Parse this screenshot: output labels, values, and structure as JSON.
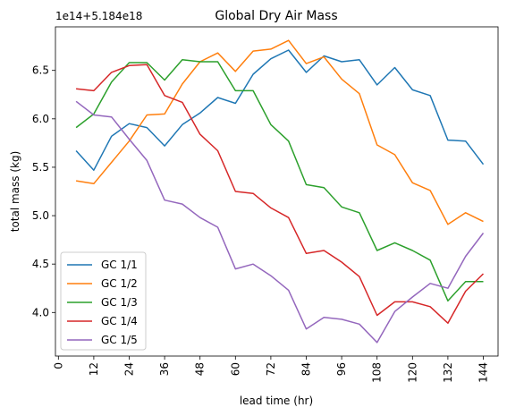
{
  "chart_data": {
    "type": "line",
    "title": "Global Dry Air Mass",
    "xlabel": "lead time (hr)",
    "ylabel": "total mass (kg)",
    "y_offset_text": "1e14+5.184e18",
    "xlim": [
      -1,
      149
    ],
    "ylim": [
      3.55,
      6.95
    ],
    "xticks": [
      0,
      12,
      24,
      36,
      48,
      60,
      72,
      84,
      96,
      108,
      120,
      132,
      144
    ],
    "yticks": [
      4.0,
      4.5,
      5.0,
      5.5,
      6.0,
      6.5
    ],
    "ytick_labels": [
      "4.0",
      "4.5",
      "5.0",
      "5.5",
      "6.0",
      "6.5"
    ],
    "grid": false,
    "legend_position": "lower-left",
    "x": [
      6,
      12,
      18,
      24,
      30,
      36,
      42,
      48,
      54,
      60,
      66,
      72,
      78,
      84,
      90,
      96,
      102,
      108,
      114,
      120,
      126,
      132,
      138,
      144
    ],
    "series": [
      {
        "name": "GC 1/1",
        "color": "#1f77b4",
        "values": [
          5.67,
          5.47,
          5.82,
          5.95,
          5.91,
          5.72,
          5.94,
          6.06,
          6.22,
          6.16,
          6.46,
          6.62,
          6.71,
          6.48,
          6.65,
          6.59,
          6.61,
          6.35,
          6.53,
          6.3,
          6.24,
          5.78,
          5.77,
          5.53
        ]
      },
      {
        "name": "GC 1/2",
        "color": "#ff7f0e",
        "values": [
          5.36,
          5.33,
          5.55,
          5.77,
          6.04,
          6.05,
          6.36,
          6.59,
          6.68,
          6.49,
          6.7,
          6.72,
          6.81,
          6.57,
          6.64,
          6.41,
          6.26,
          5.73,
          5.63,
          5.34,
          5.26,
          4.91,
          5.03,
          4.94
        ]
      },
      {
        "name": "GC 1/3",
        "color": "#2ca02c",
        "values": [
          5.91,
          6.05,
          6.38,
          6.58,
          6.58,
          6.4,
          6.61,
          6.59,
          6.59,
          6.29,
          6.29,
          5.94,
          5.77,
          5.32,
          5.29,
          5.09,
          5.03,
          4.64,
          4.72,
          4.64,
          4.54,
          4.12,
          4.32,
          4.32
        ]
      },
      {
        "name": "GC 1/4",
        "color": "#d62728",
        "values": [
          6.31,
          6.29,
          6.48,
          6.55,
          6.56,
          6.24,
          6.17,
          5.84,
          5.67,
          5.25,
          5.23,
          5.08,
          4.98,
          4.61,
          4.64,
          4.52,
          4.37,
          3.97,
          4.11,
          4.11,
          4.06,
          3.89,
          4.22,
          4.4
        ]
      },
      {
        "name": "GC 1/5",
        "color": "#9467bd",
        "values": [
          6.18,
          6.04,
          6.02,
          5.79,
          5.57,
          5.16,
          5.12,
          4.98,
          4.88,
          4.45,
          4.5,
          4.38,
          4.23,
          3.83,
          3.95,
          3.93,
          3.88,
          3.69,
          4.01,
          4.16,
          4.3,
          4.25,
          4.58,
          4.82
        ]
      }
    ]
  }
}
